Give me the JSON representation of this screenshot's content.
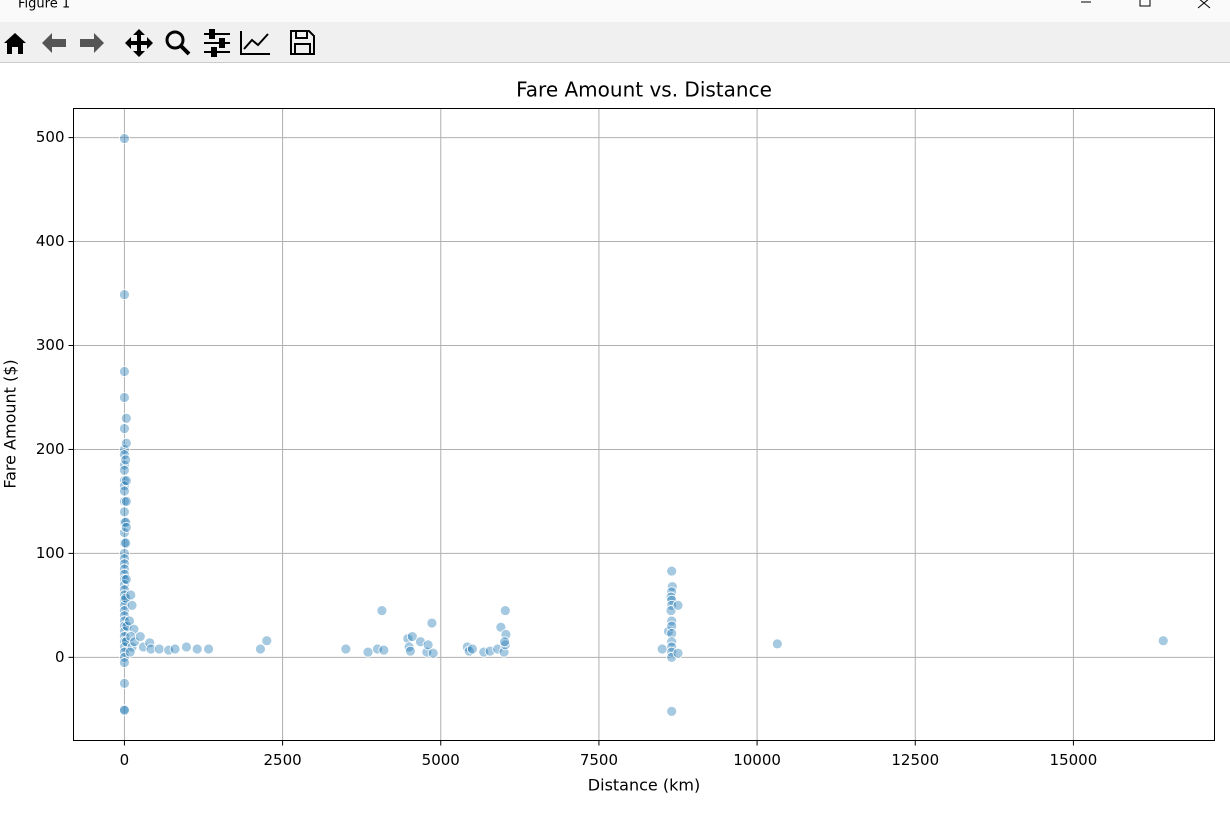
{
  "window": {
    "title": "Figure 1"
  },
  "chart_data": {
    "type": "scatter",
    "title": "Fare Amount vs. Distance",
    "x_label": "Distance (km)",
    "y_label": "Fare Amount ($)",
    "x": [
      0,
      0,
      0,
      0,
      0,
      0,
      0,
      0,
      0,
      0,
      0,
      0,
      0,
      0,
      0,
      0,
      0,
      0,
      0,
      0,
      0,
      0,
      0,
      0,
      0,
      0,
      0,
      0,
      0,
      0,
      0,
      0,
      0,
      0,
      0,
      0,
      0,
      0,
      0,
      0,
      0,
      0,
      30,
      30,
      20,
      30,
      30,
      20,
      30,
      20,
      30,
      20,
      40,
      30,
      100,
      120,
      80,
      150,
      100,
      120,
      90,
      160,
      250,
      300,
      400,
      420,
      550,
      700,
      800,
      980,
      1150,
      1330,
      2150,
      2250,
      3500,
      3850,
      4000,
      4070,
      4100,
      4480,
      4500,
      4520,
      4550,
      4680,
      4780,
      4800,
      4860,
      4880,
      5420,
      5450,
      5500,
      5680,
      5780,
      5900,
      5950,
      6000,
      6020,
      6020,
      6030,
      6010,
      8500,
      8600,
      8650,
      8660,
      8650,
      8640,
      8650,
      8650,
      8640,
      8650,
      8650,
      8650,
      8650,
      8650,
      8650,
      8650,
      8650,
      8750,
      8750,
      10320,
      16420
    ],
    "values": [
      499,
      349,
      275,
      250,
      220,
      200,
      195,
      185,
      180,
      170,
      165,
      160,
      150,
      140,
      130,
      120,
      110,
      100,
      95,
      90,
      85,
      80,
      75,
      70,
      65,
      60,
      55,
      50,
      45,
      40,
      35,
      30,
      25,
      20,
      15,
      10,
      5,
      0,
      -5,
      -25,
      -50,
      -51,
      230,
      206,
      190,
      170,
      150,
      130,
      125,
      110,
      75,
      57,
      30,
      15,
      60,
      50,
      35,
      27,
      20,
      10,
      5,
      15,
      20,
      10,
      14,
      8,
      8,
      7,
      8,
      10,
      8,
      8,
      8,
      16,
      8,
      5,
      8,
      45,
      7,
      18,
      10,
      6,
      20,
      15,
      5,
      12,
      33,
      4,
      10,
      6,
      8,
      5,
      6,
      8,
      29,
      5,
      12,
      45,
      22,
      15,
      8,
      25,
      83,
      68,
      63,
      58,
      55,
      50,
      45,
      35,
      30,
      23,
      15,
      10,
      5,
      0,
      -52,
      50,
      4,
      13,
      16
    ],
    "color": "#1f77b4",
    "xlim": [
      -805,
      17230
    ],
    "ylim": [
      -80,
      528
    ],
    "xticks": [
      0,
      2500,
      5000,
      7500,
      10000,
      12500,
      15000
    ],
    "yticks": [
      0,
      100,
      200,
      300,
      400,
      500
    ],
    "grid": true
  }
}
